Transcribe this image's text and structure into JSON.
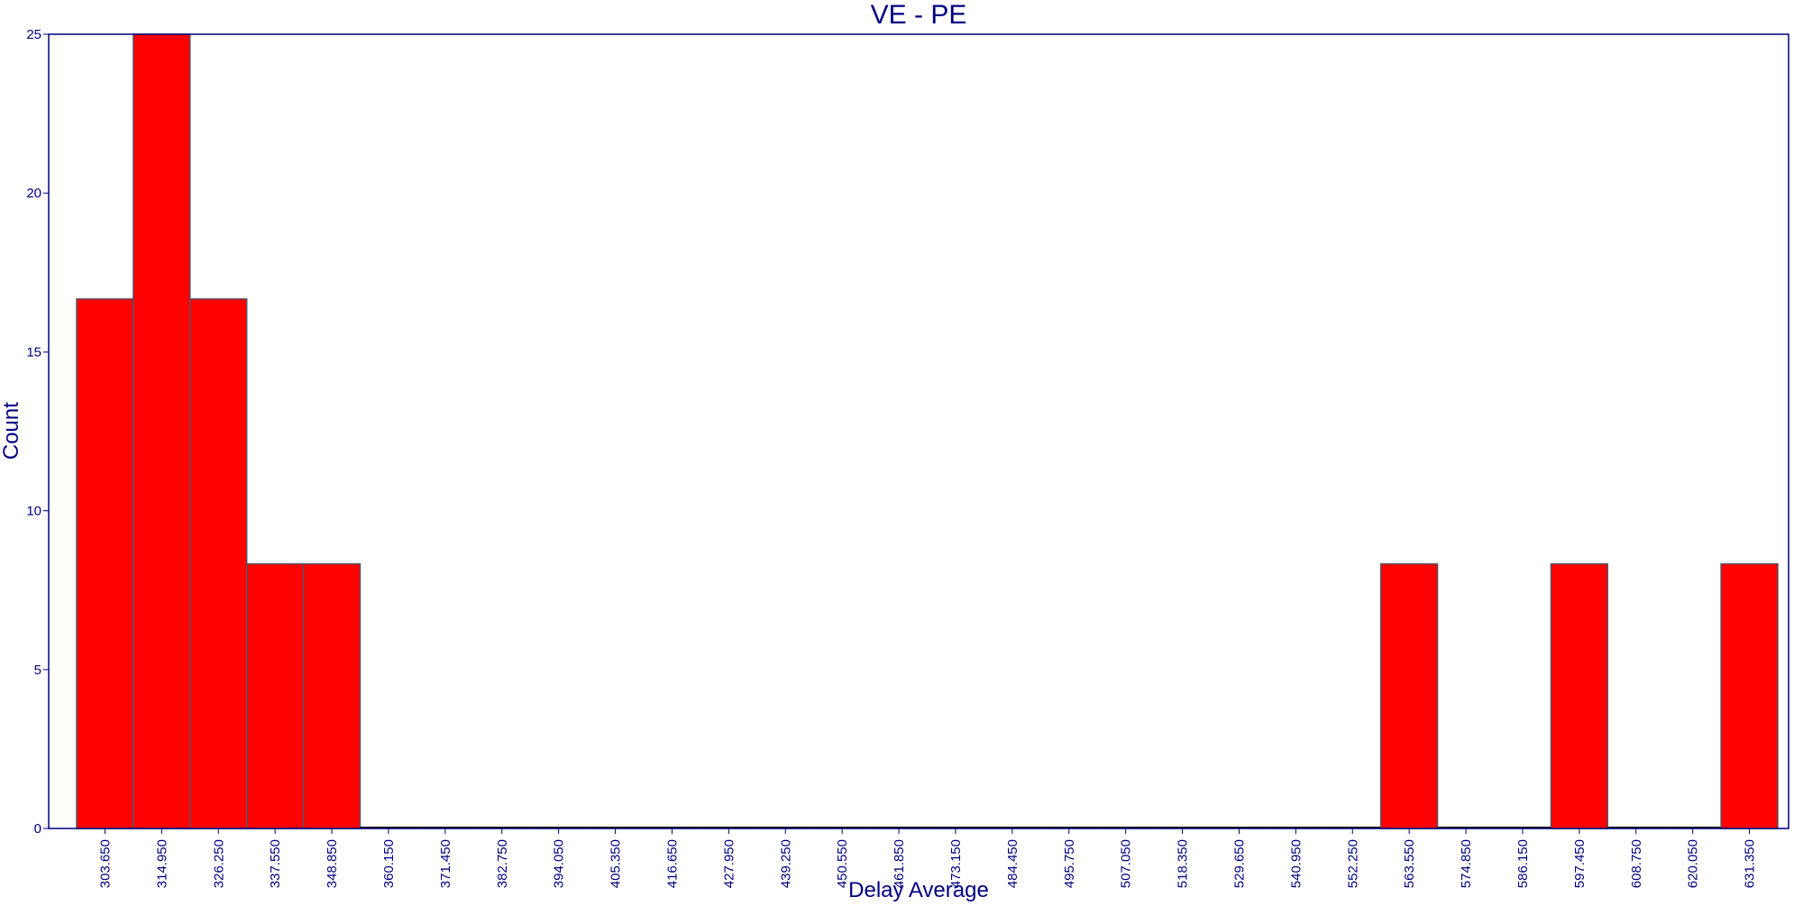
{
  "chart_data": {
    "type": "bar",
    "title": "VE - PE",
    "xlabel": "Delay Average",
    "ylabel": "Count",
    "ylim": [
      0,
      25
    ],
    "yticks": [
      0,
      5,
      10,
      15,
      20,
      25
    ],
    "grid": false,
    "categories": [
      "303.650",
      "314.950",
      "326.250",
      "337.550",
      "348.850",
      "360.150",
      "371.450",
      "382.750",
      "394.050",
      "405.350",
      "416.650",
      "427.950",
      "439.250",
      "450.550",
      "461.850",
      "473.150",
      "484.450",
      "495.750",
      "507.050",
      "518.350",
      "529.650",
      "540.950",
      "552.250",
      "563.550",
      "574.850",
      "586.150",
      "597.450",
      "608.750",
      "620.050",
      "631.350"
    ],
    "values": [
      16.67,
      25,
      16.67,
      8.33,
      8.33,
      0,
      0,
      0,
      0,
      0,
      0,
      0,
      0,
      0,
      0,
      0,
      0,
      0,
      0,
      0,
      0,
      0,
      0,
      8.33,
      0,
      0,
      8.33,
      0,
      0,
      8.33
    ],
    "colors": {
      "bar": "#ff0000",
      "bar_edge": "#555566",
      "text": "#000080",
      "frame": "#000080"
    }
  }
}
